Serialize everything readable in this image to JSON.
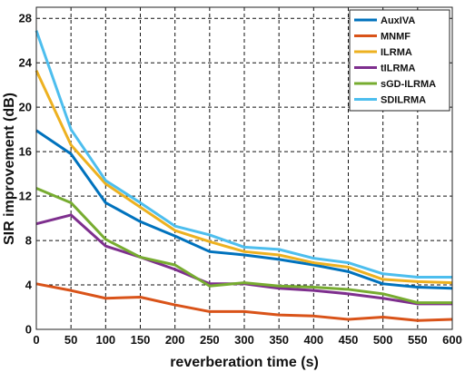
{
  "chart_data": {
    "type": "line",
    "xlabel": "reverberation time (s)",
    "ylabel": "SIR improvement (dB)",
    "xlim": [
      0,
      600
    ],
    "ylim": [
      0,
      29
    ],
    "xticks": [
      0,
      50,
      100,
      150,
      200,
      250,
      300,
      350,
      400,
      450,
      500,
      550,
      600
    ],
    "yticks": [
      0,
      4,
      8,
      12,
      16,
      20,
      24,
      28
    ],
    "grid": "dashed",
    "legend_position": "top-right",
    "x": [
      0,
      50,
      100,
      150,
      200,
      250,
      300,
      350,
      400,
      450,
      500,
      550,
      600
    ],
    "series": [
      {
        "name": "AuxIVA",
        "color": "#0072BD",
        "values": [
          17.9,
          15.8,
          11.4,
          9.7,
          8.4,
          7.0,
          6.7,
          6.3,
          5.8,
          5.2,
          4.1,
          3.8,
          3.7
        ]
      },
      {
        "name": "MNMF",
        "color": "#D95319",
        "values": [
          4.1,
          3.5,
          2.8,
          2.9,
          2.2,
          1.6,
          1.6,
          1.3,
          1.2,
          0.9,
          1.1,
          0.8,
          0.9
        ]
      },
      {
        "name": "ILRMA",
        "color": "#EDB120",
        "values": [
          23.3,
          16.6,
          13.1,
          11.0,
          8.9,
          7.9,
          7.0,
          6.7,
          6.0,
          5.6,
          4.5,
          4.3,
          4.2
        ]
      },
      {
        "name": "tILRMA",
        "color": "#7E2F8E",
        "values": [
          9.5,
          10.3,
          7.5,
          6.5,
          5.4,
          4.1,
          4.1,
          3.7,
          3.5,
          3.2,
          2.8,
          2.3,
          2.3
        ]
      },
      {
        "name": "sGD-ILRMA",
        "color": "#77AC30",
        "values": [
          12.7,
          11.4,
          8.1,
          6.5,
          5.8,
          3.9,
          4.2,
          3.9,
          3.8,
          3.6,
          3.2,
          2.4,
          2.4
        ]
      },
      {
        "name": "SDILRMA",
        "color": "#4DBEEE",
        "values": [
          26.9,
          18.0,
          13.4,
          11.4,
          9.3,
          8.5,
          7.4,
          7.2,
          6.4,
          6.0,
          5.0,
          4.7,
          4.7
        ]
      }
    ]
  }
}
